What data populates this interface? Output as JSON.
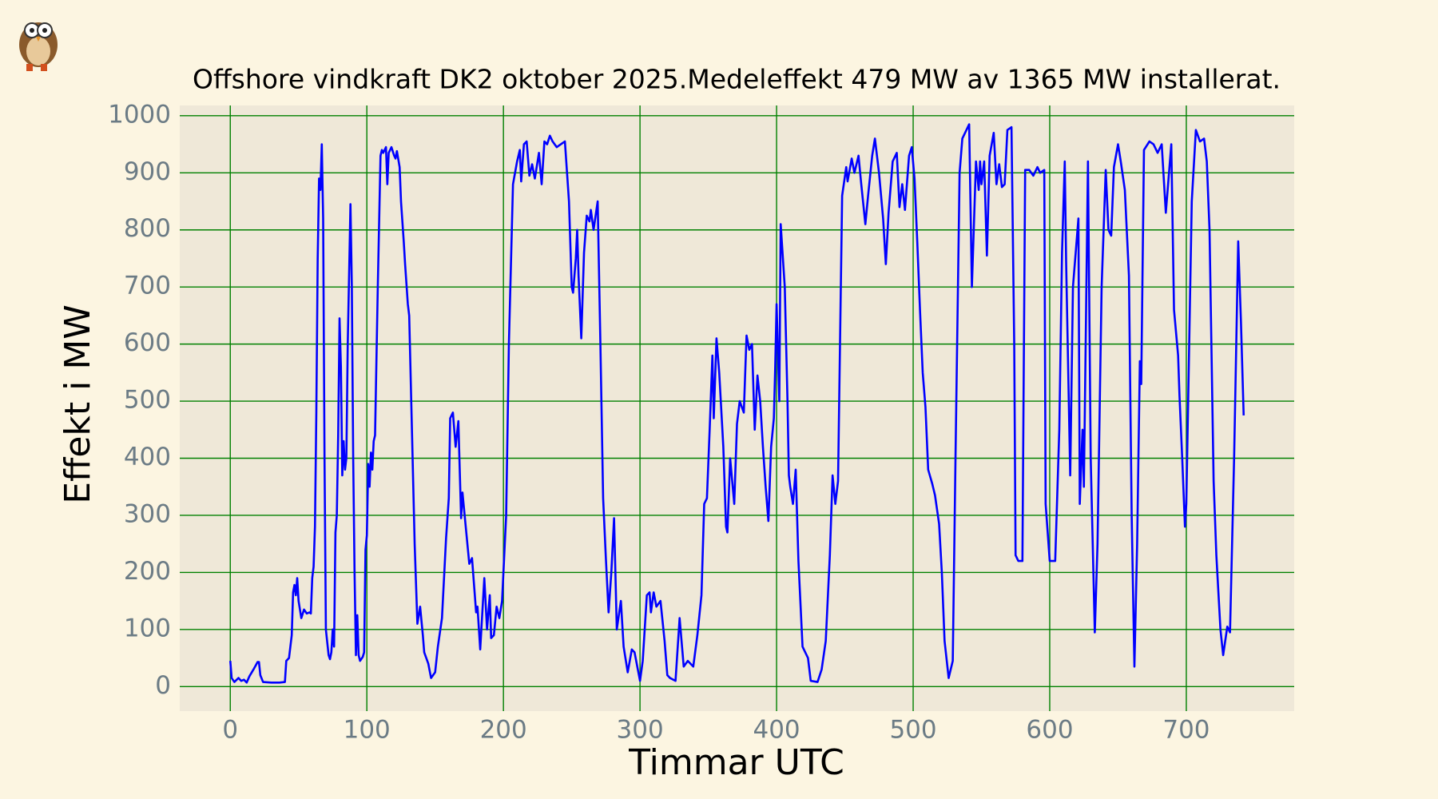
{
  "chart_data": {
    "type": "line",
    "title": "Offshore vindkraft DK2 oktober 2025.Medeleffekt 479 MW av  1365 MW installerat.",
    "x_label": "Timmar UTC",
    "y_label": "Effekt i MW",
    "color": "#0000ff",
    "grid": true,
    "grid_color": "#008000",
    "xlim": [
      -37,
      779
    ],
    "ylim": [
      -43,
      1018
    ],
    "xticks": [
      0,
      100,
      200,
      300,
      400,
      500,
      600,
      700
    ],
    "yticks": [
      0,
      100,
      200,
      300,
      400,
      500,
      600,
      700,
      800,
      900,
      1000
    ],
    "x": [
      0,
      1,
      3,
      6,
      8,
      10,
      12,
      14,
      17,
      20,
      21,
      22,
      24,
      30,
      36,
      40,
      41,
      43,
      45,
      46,
      47,
      48,
      49,
      50,
      52,
      54,
      56,
      58,
      59,
      60,
      61,
      62,
      63,
      64,
      65,
      66,
      67,
      68,
      69,
      70,
      72,
      73,
      74,
      75,
      76,
      77,
      78,
      79,
      80,
      81,
      82,
      83,
      84,
      85,
      86,
      88,
      89,
      90,
      91,
      92,
      93,
      94,
      95,
      97,
      98,
      99,
      100,
      101,
      102,
      103,
      104,
      105,
      106,
      108,
      110,
      111,
      112,
      114,
      115,
      116,
      118,
      120,
      121,
      122,
      124,
      125,
      127,
      128,
      130,
      131,
      135,
      137,
      139,
      141,
      142,
      145,
      147,
      150,
      152,
      155,
      158,
      160,
      161,
      163,
      165,
      167,
      169,
      170,
      172,
      175,
      177,
      180,
      181,
      183,
      186,
      188,
      190,
      191,
      193,
      195,
      197,
      199,
      202,
      204,
      207,
      210,
      212,
      213,
      215,
      217,
      219,
      221,
      223,
      226,
      228,
      230,
      232,
      234,
      236,
      239,
      242,
      245,
      248,
      250,
      251,
      253,
      254,
      255,
      257,
      259,
      261,
      263,
      264,
      266,
      269,
      271,
      273,
      275,
      277,
      279,
      281,
      283,
      286,
      288,
      291,
      294,
      296,
      300,
      302,
      305,
      307,
      308,
      310,
      312,
      315,
      318,
      320,
      322,
      326,
      329,
      332,
      335,
      339,
      342,
      345,
      347,
      349,
      351,
      353,
      354,
      356,
      358,
      361,
      363,
      364,
      366,
      369,
      371,
      373,
      376,
      378,
      380,
      382,
      384,
      386,
      388,
      390,
      392,
      394,
      396,
      398,
      399,
      400,
      402,
      403,
      406,
      408,
      409,
      410,
      412,
      414,
      416,
      419,
      423,
      425,
      430,
      433,
      436,
      439,
      441,
      443,
      445,
      448,
      451,
      452,
      455,
      457,
      460,
      462,
      465,
      467,
      470,
      472,
      475,
      478,
      480,
      482,
      485,
      488,
      490,
      492,
      494,
      497,
      499,
      501,
      503,
      505,
      507,
      509,
      511,
      514,
      516,
      519,
      521,
      523,
      526,
      529,
      531,
      534,
      536,
      539,
      541,
      543,
      546,
      548,
      549,
      550,
      552,
      554,
      556,
      559,
      561,
      563,
      565,
      567,
      569,
      572,
      574,
      575,
      577,
      580,
      582,
      585,
      588,
      591,
      593,
      596,
      597,
      600,
      604,
      607,
      609,
      611,
      612,
      615,
      617,
      621,
      622,
      624,
      625,
      628,
      630,
      633,
      635,
      638,
      641,
      643,
      645,
      647,
      650,
      652,
      655,
      658,
      660,
      662,
      664,
      666,
      667,
      669,
      673,
      676,
      679,
      682,
      685,
      687,
      689,
      691,
      694,
      695,
      697,
      699,
      700,
      704,
      707,
      710,
      713,
      715,
      717,
      720,
      722,
      725,
      727,
      730,
      732,
      735,
      738,
      740,
      742
    ],
    "values": [
      45,
      15,
      8,
      15,
      10,
      12,
      7,
      18,
      30,
      43,
      43,
      20,
      8,
      7,
      7,
      8,
      45,
      50,
      90,
      165,
      178,
      160,
      190,
      150,
      120,
      135,
      128,
      130,
      128,
      190,
      210,
      280,
      480,
      750,
      890,
      870,
      950,
      820,
      400,
      100,
      55,
      48,
      60,
      100,
      70,
      270,
      300,
      440,
      645,
      560,
      370,
      430,
      380,
      400,
      600,
      845,
      700,
      400,
      200,
      55,
      125,
      55,
      45,
      52,
      60,
      240,
      265,
      390,
      350,
      410,
      380,
      430,
      440,
      700,
      930,
      940,
      935,
      945,
      880,
      935,
      945,
      930,
      925,
      938,
      910,
      850,
      780,
      740,
      670,
      650,
      250,
      110,
      140,
      90,
      60,
      40,
      15,
      25,
      70,
      120,
      260,
      330,
      470,
      480,
      420,
      465,
      295,
      340,
      290,
      215,
      225,
      130,
      140,
      65,
      190,
      100,
      160,
      85,
      90,
      140,
      120,
      150,
      300,
      600,
      880,
      920,
      940,
      885,
      950,
      955,
      895,
      915,
      890,
      935,
      880,
      955,
      950,
      965,
      955,
      945,
      950,
      955,
      850,
      700,
      690,
      750,
      800,
      720,
      610,
      760,
      825,
      815,
      835,
      800,
      850,
      600,
      330,
      225,
      130,
      200,
      295,
      100,
      150,
      70,
      25,
      65,
      60,
      10,
      45,
      160,
      165,
      130,
      165,
      140,
      150,
      80,
      20,
      15,
      10,
      120,
      35,
      45,
      35,
      90,
      160,
      320,
      330,
      450,
      580,
      470,
      610,
      550,
      420,
      280,
      270,
      400,
      320,
      460,
      500,
      480,
      615,
      590,
      600,
      450,
      545,
      500,
      420,
      350,
      290,
      420,
      470,
      560,
      670,
      500,
      810,
      700,
      500,
      370,
      350,
      320,
      380,
      220,
      70,
      50,
      10,
      8,
      30,
      80,
      230,
      370,
      320,
      360,
      860,
      910,
      885,
      925,
      900,
      930,
      880,
      810,
      860,
      930,
      960,
      900,
      820,
      740,
      830,
      920,
      935,
      840,
      880,
      835,
      930,
      945,
      890,
      780,
      660,
      550,
      490,
      380,
      355,
      335,
      285,
      200,
      80,
      15,
      45,
      400,
      900,
      960,
      975,
      985,
      700,
      920,
      870,
      920,
      880,
      920,
      755,
      930,
      970,
      880,
      915,
      875,
      880,
      975,
      980,
      600,
      230,
      220,
      220,
      905,
      905,
      895,
      910,
      900,
      905,
      320,
      220,
      220,
      450,
      760,
      920,
      745,
      370,
      700,
      820,
      320,
      450,
      350,
      920,
      400,
      95,
      250,
      700,
      905,
      800,
      790,
      910,
      950,
      920,
      870,
      720,
      300,
      35,
      250,
      570,
      530,
      940,
      955,
      950,
      935,
      950,
      830,
      890,
      950,
      660,
      580,
      510,
      400,
      280,
      320,
      850,
      975,
      955,
      960,
      920,
      800,
      360,
      230,
      100,
      55,
      105,
      95,
      400,
      780,
      640,
      475
    ]
  }
}
